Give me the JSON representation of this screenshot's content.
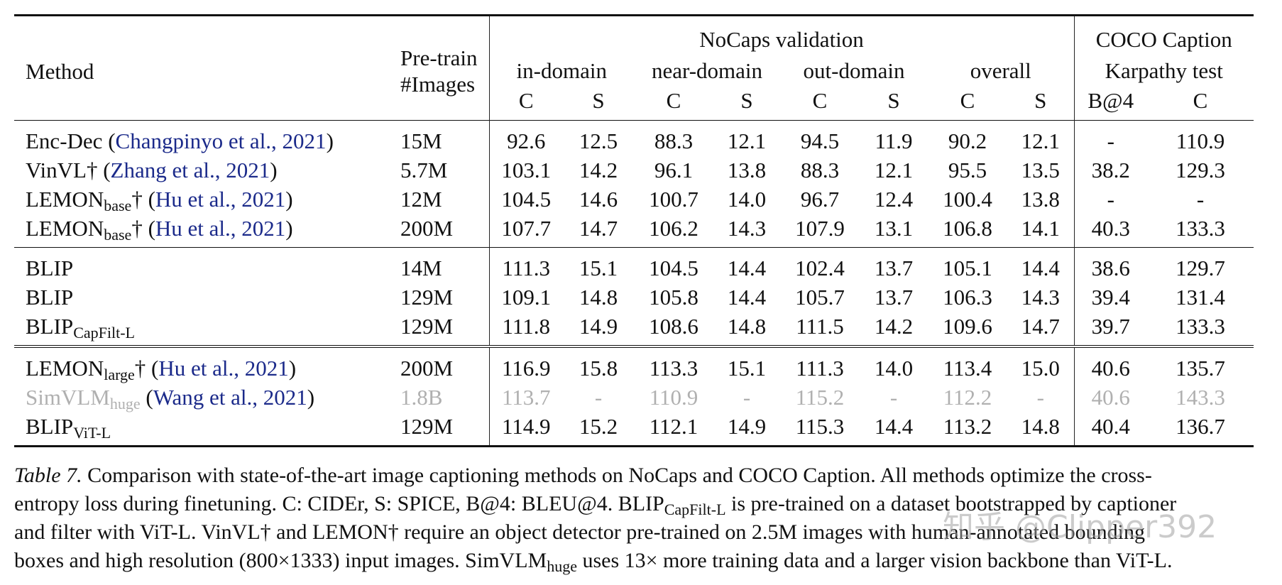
{
  "header": {
    "method": "Method",
    "pretrain_line1": "Pre-train",
    "pretrain_line2": "#Images",
    "nocaps": "NoCaps validation",
    "coco_line1": "COCO Caption",
    "coco_line2": "Karpathy test",
    "groups": [
      "in-domain",
      "near-domain",
      "out-domain",
      "overall"
    ],
    "sub": [
      "C",
      "S",
      "C",
      "S",
      "C",
      "S",
      "C",
      "S",
      "B@4",
      "C"
    ]
  },
  "rows": [
    {
      "name": "Enc-Dec",
      "sub": "",
      "dagger": "",
      "cite": "Changpinyo et al., 2021",
      "images": "15M",
      "values": [
        "92.6",
        "12.5",
        "88.3",
        "12.1",
        "94.5",
        "11.9",
        "90.2",
        "12.1",
        "-",
        "110.9"
      ]
    },
    {
      "name": "VinVL",
      "sub": "",
      "dagger": "†",
      "cite": "Zhang et al., 2021",
      "images": "5.7M",
      "values": [
        "103.1",
        "14.2",
        "96.1",
        "13.8",
        "88.3",
        "12.1",
        "95.5",
        "13.5",
        "38.2",
        "129.3"
      ]
    },
    {
      "name": "LEMON",
      "sub": "base",
      "dagger": "†",
      "cite": "Hu et al., 2021",
      "images": "12M",
      "values": [
        "104.5",
        "14.6",
        "100.7",
        "14.0",
        "96.7",
        "12.4",
        "100.4",
        "13.8",
        "-",
        "-"
      ]
    },
    {
      "name": "LEMON",
      "sub": "base",
      "dagger": "†",
      "cite": "Hu et al., 2021",
      "images": "200M",
      "values": [
        "107.7",
        "14.7",
        "106.2",
        "14.3",
        "107.9",
        "13.1",
        "106.8",
        "14.1",
        "40.3",
        "133.3"
      ]
    },
    {
      "name": "BLIP",
      "sub": "",
      "dagger": "",
      "cite": "",
      "images": "14M",
      "values": [
        "111.3",
        "15.1",
        "104.5",
        "14.4",
        "102.4",
        "13.7",
        "105.1",
        "14.4",
        "38.6",
        "129.7"
      ]
    },
    {
      "name": "BLIP",
      "sub": "",
      "dagger": "",
      "cite": "",
      "images": "129M",
      "values": [
        "109.1",
        "14.8",
        "105.8",
        "14.4",
        "105.7",
        "13.7",
        "106.3",
        "14.3",
        "39.4",
        "131.4"
      ]
    },
    {
      "name": "BLIP",
      "sub": "CapFilt-L",
      "dagger": "",
      "cite": "",
      "images": "129M",
      "values": [
        "111.8",
        "14.9",
        "108.6",
        "14.8",
        "111.5",
        "14.2",
        "109.6",
        "14.7",
        "39.7",
        "133.3"
      ]
    },
    {
      "name": "LEMON",
      "sub": "large",
      "dagger": "†",
      "cite": "Hu et al., 2021",
      "images": "200M",
      "values": [
        "116.9",
        "15.8",
        "113.3",
        "15.1",
        "111.3",
        "14.0",
        "113.4",
        "15.0",
        "40.6",
        "135.7"
      ]
    },
    {
      "name": "SimVLM",
      "sub": "huge",
      "dagger": "",
      "cite": "Wang et al., 2021",
      "images": "1.8B",
      "values": [
        "113.7",
        "-",
        "110.9",
        "-",
        "115.2",
        "-",
        "112.2",
        "-",
        "40.6",
        "143.3"
      ]
    },
    {
      "name": "BLIP",
      "sub": "ViT-L",
      "dagger": "",
      "cite": "",
      "images": "129M",
      "values": [
        "114.9",
        "15.2",
        "112.1",
        "14.9",
        "115.3",
        "14.4",
        "113.2",
        "14.8",
        "40.4",
        "136.7"
      ]
    }
  ],
  "caption": {
    "label": "Table 7.",
    "l1": " Comparison with state-of-the-art image captioning methods on NoCaps and COCO Caption. All methods optimize the cross-",
    "l2a": "entropy loss during finetuning. C: CIDEr, S: SPICE, B@4: BLEU@4. BLIP",
    "l2sub": "CapFilt-L",
    "l2b": " is pre-trained on a dataset bootstrapped by captioner",
    "l3": "and filter with ViT-L. VinVL† and LEMON† require an object detector pre-trained on 2.5M images with human-annotated bounding",
    "l4a": "boxes and high resolution (800×1333) input images. SimVLM",
    "l4sub": "huge",
    "l4b": " uses 13× more training data and a larger vision backbone than ViT-L."
  },
  "watermark": "知乎 @Clipper392"
}
